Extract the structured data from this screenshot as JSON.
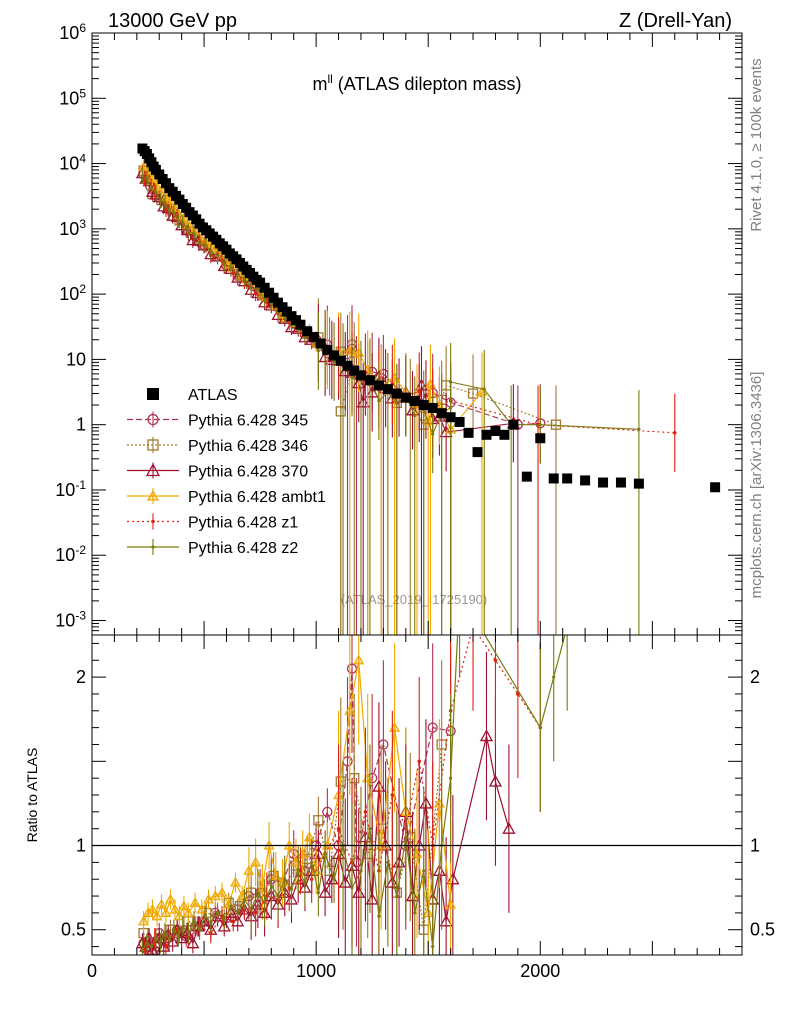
{
  "header": {
    "energy": "13000 GeV pp",
    "process": "Z (Drell-Yan)"
  },
  "side_labels": {
    "rivet": "Rivet 4.1.0, ≥ 100k events",
    "source": "mcplots.cern.ch [arXiv:1306.3436]"
  },
  "colors": {
    "ATLAS": "#000000",
    "p345": "#b03050",
    "p346": "#a07830",
    "p370": "#9e1030",
    "ambt1": "#f0a800",
    "z1": "#e02010",
    "z2": "#7a7a10"
  },
  "chart_data": {
    "type": "scatter",
    "title": "m^{ll} (ATLAS dilepton mass)",
    "title_main": "m",
    "title_sup": "ll",
    "title_rest": " (ATLAS dilepton mass)",
    "analysis_id": "(ATLAS_2019_I1725190)",
    "xlabel": "",
    "xlim": [
      0,
      2900
    ],
    "x_ticks": [
      "0",
      "1000",
      "2000"
    ],
    "main_panel": {
      "yscale": "log",
      "ylim": [
        0.0006,
        1000000
      ],
      "y_ticks": [
        "10^-3",
        "10^-2",
        "10^-1",
        "1",
        "10",
        "10^2",
        "10^3",
        "10^4",
        "10^5",
        "10^6"
      ],
      "legend": [
        {
          "key": "ATLAS",
          "label": "ATLAS"
        },
        {
          "key": "p345",
          "label": "Pythia 6.428 345"
        },
        {
          "key": "p346",
          "label": "Pythia 6.428 346"
        },
        {
          "key": "p370",
          "label": "Pythia 6.428 370"
        },
        {
          "key": "ambt1",
          "label": "Pythia 6.428 ambt1"
        },
        {
          "key": "z1",
          "label": "Pythia 6.428 z1"
        },
        {
          "key": "z2",
          "label": "Pythia 6.428 z2"
        }
      ],
      "legend_position": "bottom-left",
      "atlas": {
        "x": [
          225,
          235,
          245,
          255,
          265,
          275,
          285,
          300,
          315,
          330,
          345,
          360,
          375,
          390,
          405,
          420,
          435,
          450,
          465,
          480,
          495,
          510,
          525,
          540,
          555,
          570,
          585,
          600,
          615,
          630,
          645,
          660,
          675,
          690,
          705,
          720,
          735,
          750,
          770,
          790,
          810,
          830,
          850,
          870,
          890,
          910,
          930,
          960,
          990,
          1020,
          1050,
          1080,
          1110,
          1140,
          1170,
          1200,
          1240,
          1280,
          1320,
          1360,
          1400,
          1440,
          1480,
          1520,
          1560,
          1600,
          1640,
          1680,
          1720,
          1760,
          1800,
          1840,
          1880,
          1940,
          2000,
          2060,
          2120,
          2200,
          2280,
          2360,
          2440,
          2780
        ],
        "y": [
          17000,
          15500,
          14000,
          12000,
          10500,
          9000,
          8000,
          6800,
          5800,
          5000,
          4200,
          3700,
          3200,
          2800,
          2400,
          2100,
          1800,
          1600,
          1400,
          1200,
          1050,
          950,
          850,
          760,
          680,
          600,
          540,
          480,
          420,
          380,
          340,
          300,
          265,
          235,
          210,
          185,
          165,
          150,
          125,
          105,
          88,
          74,
          63,
          54,
          46,
          40,
          34,
          27,
          22,
          17.5,
          14,
          11.5,
          9.5,
          8,
          6.7,
          5.7,
          4.8,
          4.0,
          3.5,
          3.0,
          2.6,
          2.3,
          2.0,
          1.8,
          1.5,
          1.3,
          1.1,
          0.75,
          0.38,
          0.7,
          0.8,
          0.7,
          1.0,
          0.16,
          0.62,
          0.15,
          0.15,
          0.14,
          0.13,
          0.13,
          0.125,
          0.11
        ]
      },
      "model_shape": {
        "x": [
          225,
          260,
          300,
          350,
          400,
          450,
          500,
          550,
          600,
          650,
          700,
          750,
          800,
          850,
          900,
          950,
          1000,
          1050,
          1100,
          1150,
          1200,
          1250,
          1300,
          1350,
          1400,
          1450,
          1500,
          1550,
          1600
        ],
        "y": [
          8500,
          6000,
          3800,
          2200,
          1300,
          800,
          500,
          330,
          210,
          140,
          95,
          65,
          45,
          32,
          23,
          17,
          13,
          10,
          8,
          6.5,
          5.2,
          4.3,
          3.6,
          3.0,
          2.6,
          2.3,
          2.1,
          1.9,
          1.8
        ]
      },
      "sparse_points": {
        "p345": {
          "x": [
            1160,
            1900,
            2000
          ],
          "y": [
            17,
            1.0,
            1.05
          ]
        },
        "p346": {
          "x": [
            1110,
            1580,
            1700,
            2070
          ],
          "y": [
            1.6,
            4.0,
            3.0,
            1.0
          ]
        },
        "p370": {
          "x": [
            1210,
            1470,
            1880
          ],
          "y": [
            2.2,
            4.0,
            1.05
          ]
        },
        "ambt1": {
          "x": [
            1510,
            1740
          ],
          "y": [
            4.2,
            3.2
          ]
        },
        "z1": {
          "x": [
            1990,
            2600
          ],
          "y": [
            1.0,
            0.75
          ]
        },
        "z2": {
          "x": [
            1600,
            1750,
            1870,
            2000,
            2440
          ],
          "y": [
            4.5,
            3.5,
            1.0,
            1.0,
            0.85
          ]
        }
      }
    },
    "ratio_panel": {
      "ylabel": "Ratio to ATLAS",
      "ylim": [
        0.35,
        2.25
      ],
      "y_ticks": [
        "0.5",
        "1",
        "2"
      ],
      "reference": 1.0,
      "series": {
        "p345": {
          "x": [
            230,
            260,
            300,
            340,
            380,
            420,
            460,
            500,
            550,
            600,
            650,
            700,
            750,
            800,
            850,
            900,
            950,
            1000,
            1050,
            1100,
            1140,
            1160,
            1180,
            1250,
            1300,
            1400,
            1520,
            1600
          ],
          "y": [
            0.42,
            0.4,
            0.48,
            0.45,
            0.5,
            0.46,
            0.52,
            0.55,
            0.6,
            0.57,
            0.62,
            0.7,
            0.72,
            0.8,
            0.78,
            0.95,
            0.85,
            1.0,
            1.2,
            1.0,
            1.5,
            2.05,
            0.9,
            1.4,
            1.6,
            1.0,
            1.7,
            1.68
          ]
        },
        "p346": {
          "x": [
            230,
            270,
            310,
            350,
            390,
            430,
            470,
            510,
            560,
            610,
            660,
            710,
            760,
            810,
            860,
            910,
            960,
            1010,
            1060,
            1110,
            1170,
            1230,
            1290,
            1360,
            1420,
            1480,
            1560
          ],
          "y": [
            0.48,
            0.35,
            0.45,
            0.5,
            0.48,
            0.55,
            0.52,
            0.6,
            0.58,
            0.66,
            0.64,
            0.72,
            0.7,
            0.82,
            0.76,
            0.88,
            0.92,
            1.15,
            0.85,
            1.38,
            1.4,
            0.95,
            1.1,
            0.72,
            1.05,
            0.5,
            1.6
          ]
        },
        "p370": {
          "x": [
            225,
            240,
            255,
            270,
            285,
            300,
            320,
            340,
            360,
            380,
            400,
            425,
            450,
            475,
            500,
            530,
            560,
            590,
            620,
            650,
            680,
            710,
            740,
            770,
            800,
            830,
            860,
            890,
            920,
            950,
            980,
            1010,
            1040,
            1070,
            1100,
            1130,
            1160,
            1190,
            1220,
            1250,
            1280,
            1310,
            1340,
            1370,
            1400,
            1430,
            1460,
            1490,
            1520,
            1550,
            1580,
            1610,
            1760,
            1800,
            1860
          ],
          "y": [
            0.42,
            0.4,
            0.45,
            0.38,
            0.42,
            0.45,
            0.4,
            0.47,
            0.43,
            0.5,
            0.45,
            0.48,
            0.42,
            0.52,
            0.55,
            0.5,
            0.58,
            0.52,
            0.6,
            0.55,
            0.62,
            0.58,
            0.65,
            0.6,
            0.7,
            0.65,
            0.72,
            0.68,
            0.8,
            0.75,
            0.85,
            0.95,
            0.72,
            0.8,
            0.95,
            0.78,
            0.88,
            0.72,
            1.05,
            0.68,
            1.35,
            1.0,
            0.78,
            0.9,
            1.2,
            0.7,
            1.0,
            1.25,
            0.68,
            0.85,
            0.55,
            0.8,
            1.65,
            1.38,
            1.1
          ]
        },
        "ambt1": {
          "x": [
            230,
            250,
            270,
            290,
            310,
            330,
            350,
            370,
            390,
            410,
            430,
            460,
            490,
            520,
            550,
            580,
            610,
            640,
            670,
            700,
            730,
            760,
            790,
            820,
            850,
            880,
            910,
            940,
            970,
            1000,
            1050,
            1100,
            1150,
            1190,
            1230,
            1290,
            1350,
            1400,
            1450,
            1500,
            1550,
            1600
          ],
          "y": [
            0.55,
            0.6,
            0.62,
            0.58,
            0.65,
            0.6,
            0.68,
            0.62,
            0.58,
            0.64,
            0.6,
            0.66,
            0.62,
            0.68,
            0.7,
            0.72,
            0.65,
            0.78,
            0.7,
            0.85,
            0.9,
            0.75,
            1.0,
            0.82,
            0.78,
            1.0,
            0.9,
            0.95,
            1.05,
            0.85,
            1.0,
            1.3,
            1.8,
            2.1,
            1.4,
            1.0,
            1.7,
            1.2,
            0.95,
            0.6,
            1.25,
            0.65
          ]
        },
        "z1": {
          "x": [
            235,
            280,
            330,
            380,
            430,
            480,
            530,
            580,
            630,
            680,
            730,
            780,
            830,
            880,
            930,
            980,
            1040,
            1100,
            1160,
            1220,
            1280,
            1340,
            1400,
            1460,
            1520,
            1600,
            1700,
            1800,
            1900,
            2000
          ],
          "y": [
            0.38,
            0.45,
            0.4,
            0.5,
            0.45,
            0.52,
            0.48,
            0.58,
            0.55,
            0.62,
            0.6,
            0.7,
            0.68,
            0.75,
            0.85,
            0.8,
            0.95,
            1.1,
            0.9,
            1.2,
            0.85,
            1.3,
            1.1,
            1.5,
            1.0,
            1.8,
            2.3,
            2.1,
            1.9,
            1.7
          ]
        },
        "z2": {
          "x": [
            225,
            245,
            265,
            285,
            305,
            325,
            345,
            365,
            385,
            405,
            430,
            455,
            480,
            505,
            530,
            560,
            590,
            620,
            650,
            680,
            710,
            740,
            770,
            800,
            830,
            860,
            890,
            920,
            950,
            980,
            1010,
            1040,
            1080,
            1120,
            1160,
            1200,
            1240,
            1280,
            1320,
            1360,
            1400,
            1440,
            1480,
            1520,
            1560,
            1600,
            1640,
            2000,
            2060,
            2120
          ],
          "y": [
            0.38,
            0.42,
            0.4,
            0.45,
            0.42,
            0.48,
            0.44,
            0.5,
            0.46,
            0.52,
            0.48,
            0.55,
            0.5,
            0.58,
            0.54,
            0.6,
            0.56,
            0.64,
            0.6,
            0.68,
            0.62,
            0.72,
            0.66,
            0.76,
            0.7,
            0.8,
            0.74,
            0.86,
            0.78,
            0.9,
            0.72,
            0.95,
            0.8,
            1.0,
            0.75,
            0.85,
            1.1,
            0.58,
            0.9,
            0.7,
            1.05,
            0.6,
            0.85,
            0.4,
            1.0,
            1.4,
            2.5,
            1.7,
            2.0,
            2.3
          ]
        }
      }
    }
  }
}
